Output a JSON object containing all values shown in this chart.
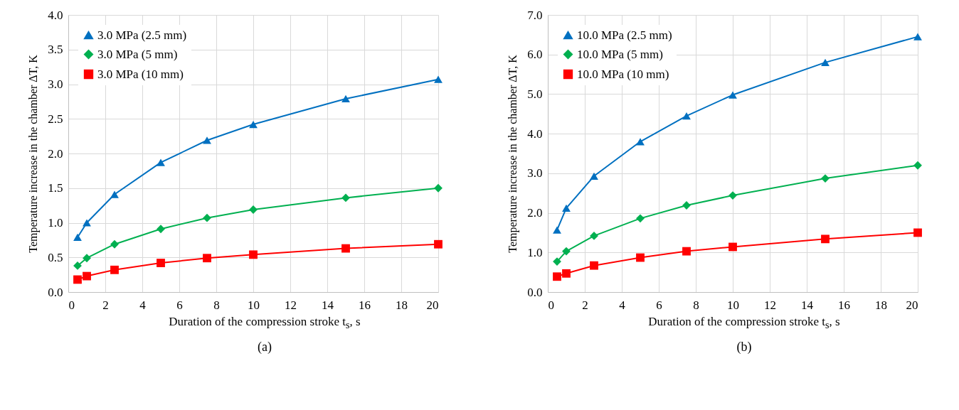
{
  "chart_data": [
    {
      "type": "line",
      "xlabel": "Duration of the compression stroke t$_{s}$, s",
      "ylabel": "Temperature increase in the chamber ΔT, K",
      "annotations": [
        "(a)"
      ],
      "x": [
        0.5,
        1,
        2.5,
        5,
        7.5,
        10,
        15,
        20
      ],
      "series": [
        {
          "name": "3.0 MPa (2.5 mm)",
          "color": "#0070c0",
          "marker": "triangle",
          "values": [
            0.79,
            1.0,
            1.41,
            1.87,
            2.19,
            2.42,
            2.79,
            3.07
          ]
        },
        {
          "name": "3.0 MPa (5 mm)",
          "color": "#00b050",
          "marker": "diamond",
          "values": [
            0.38,
            0.49,
            0.69,
            0.91,
            1.07,
            1.19,
            1.36,
            1.5
          ]
        },
        {
          "name": "3.0 MPa (10 mm)",
          "color": "#ff0000",
          "marker": "square",
          "values": [
            0.18,
            0.23,
            0.32,
            0.42,
            0.49,
            0.54,
            0.63,
            0.69
          ]
        }
      ],
      "xlim": [
        0,
        20
      ],
      "xticks": [
        0,
        2,
        4,
        6,
        8,
        10,
        12,
        14,
        16,
        18,
        20
      ],
      "ylim": [
        0,
        4
      ],
      "yticks": [
        {
          "value": 0,
          "label": "0.0"
        },
        0.5,
        {
          "value": 1,
          "label": "1.0"
        },
        1.5,
        {
          "value": 2,
          "label": "2.0"
        },
        2.5,
        {
          "value": 3,
          "label": "3.0"
        },
        3.5,
        {
          "value": 4,
          "label": "4.0"
        }
      ],
      "grid": true,
      "legend": "top left"
    },
    {
      "type": "line",
      "xlabel": "Duration of the compression stroke t$_{s}$, s",
      "ylabel": "Temperature increase in the chamber ΔT, K",
      "annotations": [
        "(b)"
      ],
      "x": [
        0.5,
        1,
        2.5,
        5,
        7.5,
        10,
        15,
        20
      ],
      "series": [
        {
          "name": "10.0 MPa (2.5 mm)",
          "color": "#0070c0",
          "marker": "triangle",
          "values": [
            1.57,
            2.12,
            2.93,
            3.8,
            4.45,
            4.98,
            5.8,
            6.45
          ]
        },
        {
          "name": "10.0 MPa (5 mm)",
          "color": "#00b050",
          "marker": "diamond",
          "values": [
            0.77,
            1.03,
            1.42,
            1.86,
            2.19,
            2.44,
            2.87,
            3.2
          ]
        },
        {
          "name": "10.0 MPa (10 mm)",
          "color": "#ff0000",
          "marker": "square",
          "values": [
            0.39,
            0.47,
            0.67,
            0.87,
            1.03,
            1.14,
            1.34,
            1.5
          ]
        }
      ],
      "xlim": [
        0,
        20
      ],
      "xticks": [
        0,
        2,
        4,
        6,
        8,
        10,
        12,
        14,
        16,
        18,
        20
      ],
      "ylim": [
        0,
        7
      ],
      "yticks": [
        {
          "value": 0,
          "label": "0.0"
        },
        {
          "value": 1,
          "label": "1.0"
        },
        {
          "value": 2,
          "label": "2.0"
        },
        {
          "value": 3,
          "label": "3.0"
        },
        {
          "value": 4,
          "label": "4.0"
        },
        {
          "value": 5,
          "label": "5.0"
        },
        {
          "value": 6,
          "label": "6.0"
        },
        {
          "value": 7,
          "label": "7.0"
        }
      ],
      "grid": true,
      "legend": "top left"
    }
  ]
}
